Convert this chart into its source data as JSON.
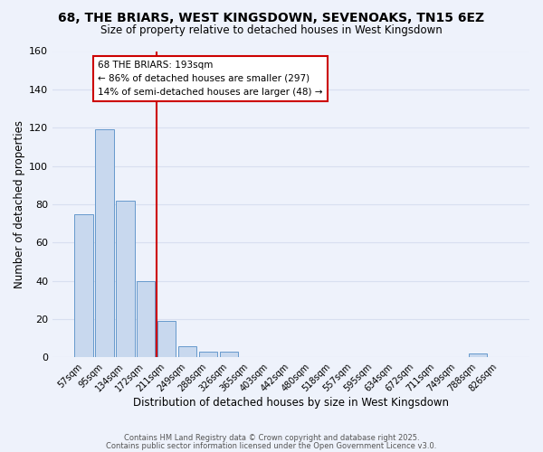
{
  "title_line1": "68, THE BRIARS, WEST KINGSDOWN, SEVENOAKS, TN15 6EZ",
  "title_line2": "Size of property relative to detached houses in West Kingsdown",
  "xlabel": "Distribution of detached houses by size in West Kingsdown",
  "ylabel": "Number of detached properties",
  "bar_labels": [
    "57sqm",
    "95sqm",
    "134sqm",
    "172sqm",
    "211sqm",
    "249sqm",
    "288sqm",
    "326sqm",
    "365sqm",
    "403sqm",
    "442sqm",
    "480sqm",
    "518sqm",
    "557sqm",
    "595sqm",
    "634sqm",
    "672sqm",
    "711sqm",
    "749sqm",
    "788sqm",
    "826sqm"
  ],
  "bar_values": [
    75,
    119,
    82,
    40,
    19,
    6,
    3,
    3,
    0,
    0,
    0,
    0,
    0,
    0,
    0,
    0,
    0,
    0,
    0,
    2,
    0
  ],
  "bar_color": "#c8d8ee",
  "bar_edge_color": "#6699cc",
  "background_color": "#eef2fb",
  "grid_color": "#d8dff0",
  "vline_x": 3.5,
  "vline_color": "#cc0000",
  "annotation_title": "68 THE BRIARS: 193sqm",
  "annotation_line2": "← 86% of detached houses are smaller (297)",
  "annotation_line3": "14% of semi-detached houses are larger (48) →",
  "annotation_box_color": "#ffffff",
  "annotation_box_edge": "#cc0000",
  "ylim": [
    0,
    160
  ],
  "yticks": [
    0,
    20,
    40,
    60,
    80,
    100,
    120,
    140,
    160
  ],
  "footer_line1": "Contains HM Land Registry data © Crown copyright and database right 2025.",
  "footer_line2": "Contains public sector information licensed under the Open Government Licence v3.0."
}
